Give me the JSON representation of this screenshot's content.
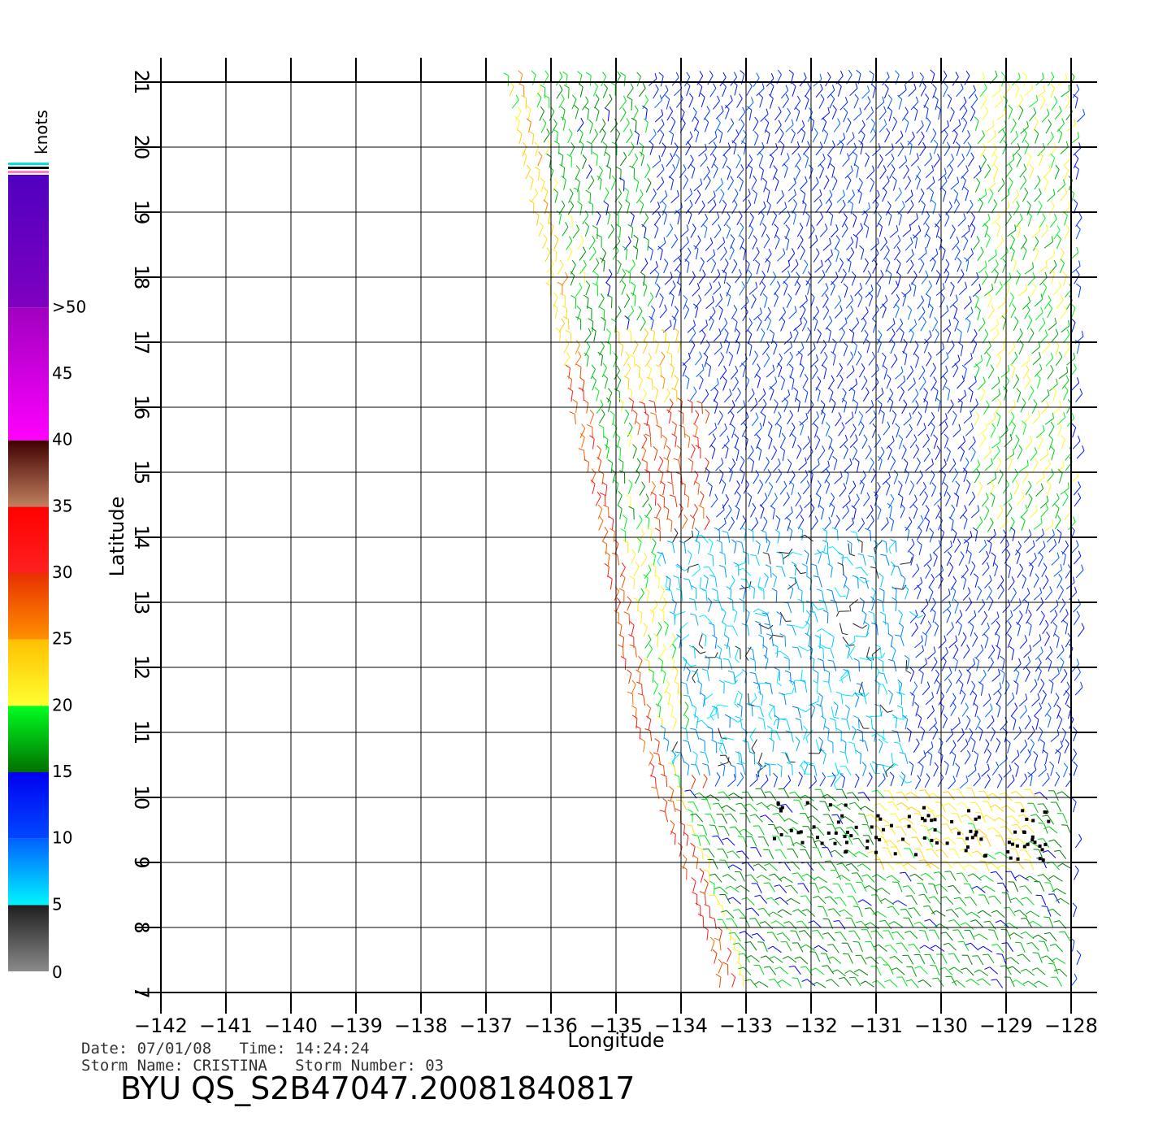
{
  "chart_data": {
    "type": "scatter",
    "subtype": "wind-barb map",
    "xlabel": "Longitude",
    "ylabel": "Latitude",
    "xlim": [
      -142,
      -128
    ],
    "ylim": [
      7,
      21
    ],
    "xticks": [
      "-142",
      "-141",
      "-140",
      "-139",
      "-138",
      "-137",
      "-136",
      "-135",
      "-134",
      "-133",
      "-132",
      "-131",
      "-130",
      "-129",
      "-128"
    ],
    "yticks": [
      "7",
      "8",
      "9",
      "10",
      "11",
      "12",
      "13",
      "14",
      "15",
      "16",
      "17",
      "18",
      "19",
      "20",
      "21"
    ],
    "grid": true,
    "colorbar": {
      "unit": "knots",
      "labels": [
        "0",
        "5",
        "10",
        "15",
        "20",
        "25",
        "30",
        "35",
        "40",
        "45",
        ">50"
      ],
      "segments": [
        {
          "from": 0,
          "to": 5,
          "colors": [
            "#8a8a8a",
            "#1e1e1e"
          ]
        },
        {
          "from": 5,
          "to": 10,
          "colors": [
            "#00f5ff",
            "#0060ff"
          ]
        },
        {
          "from": 10,
          "to": 15,
          "colors": [
            "#0048ff",
            "#0000f0"
          ]
        },
        {
          "from": 15,
          "to": 20,
          "colors": [
            "#007000",
            "#00ff20"
          ]
        },
        {
          "from": 20,
          "to": 25,
          "colors": [
            "#ffff30",
            "#ffc000"
          ]
        },
        {
          "from": 25,
          "to": 30,
          "colors": [
            "#ff9000",
            "#e83000"
          ]
        },
        {
          "from": 30,
          "to": 35,
          "colors": [
            "#ff2020",
            "#ff0000"
          ]
        },
        {
          "from": 35,
          "to": 40,
          "colors": [
            "#c08060",
            "#400000"
          ]
        },
        {
          "from": 40,
          "to": 50,
          "colors": [
            "#ff00ff",
            "#a000c0"
          ]
        },
        {
          "from": 50,
          "to": 60,
          "colors": [
            "#8000c0",
            "#5000c0"
          ]
        }
      ]
    },
    "swath": {
      "west_edge": [
        [
          -136.7,
          21
        ],
        [
          -135.7,
          16
        ],
        [
          -135.3,
          14.2
        ],
        [
          -134.7,
          11
        ],
        [
          -133.7,
          8
        ],
        [
          -133.4,
          7
        ]
      ],
      "east_edge": -127.9
    },
    "wind_regions": [
      {
        "name": "north-blue",
        "lat": [
          14,
          21
        ],
        "lon": [
          -135,
          -130
        ],
        "speed": 12,
        "dir": 60
      },
      {
        "name": "west-green-strip",
        "lat": [
          15,
          21
        ],
        "lon": [
          -136.7,
          -134.5
        ],
        "speed": 17,
        "dir": 70
      },
      {
        "name": "west-yellow-strip",
        "lat": [
          11,
          17
        ],
        "lon": [
          -136,
          -134
        ],
        "speed": 23,
        "dir": 75
      },
      {
        "name": "west-red-strip",
        "lat": [
          7.5,
          16
        ],
        "lon": [
          -135.8,
          -133.6
        ],
        "speed": 29,
        "dir": 80
      },
      {
        "name": "east-green-yellow",
        "lat": [
          14,
          21
        ],
        "lon": [
          -129.5,
          -128
        ],
        "speed": 19,
        "dir": 55
      },
      {
        "name": "calm-center",
        "lat": [
          11,
          13.5
        ],
        "lon": [
          -134.2,
          -131
        ],
        "speed": 3,
        "dir": 0
      },
      {
        "name": "light-cyan",
        "lat": [
          10.3,
          14
        ],
        "lon": [
          -134.3,
          -130.5
        ],
        "speed": 7,
        "dir": 90
      },
      {
        "name": "south-green",
        "lat": [
          7,
          10
        ],
        "lon": [
          -134,
          -128
        ],
        "speed": 17,
        "dir": 130
      },
      {
        "name": "south-yellow",
        "lat": [
          8.8,
          10
        ],
        "lon": [
          -131,
          -128.5
        ],
        "speed": 22,
        "dir": 130
      }
    ],
    "rain_flag_lat": [
      8.9,
      10.3
    ],
    "rain_flag_lon": [
      -132.6,
      -128.3
    ]
  },
  "meta": {
    "date_line": "Date: 07/01/08   Time: 14:24:24",
    "storm_line": "Storm Name: CRISTINA   Storm Number: 03",
    "file_label": "BYU QS_S2B47047.20081840817"
  },
  "colors": {
    "grid": "#000000",
    "background": "#ffffff"
  }
}
